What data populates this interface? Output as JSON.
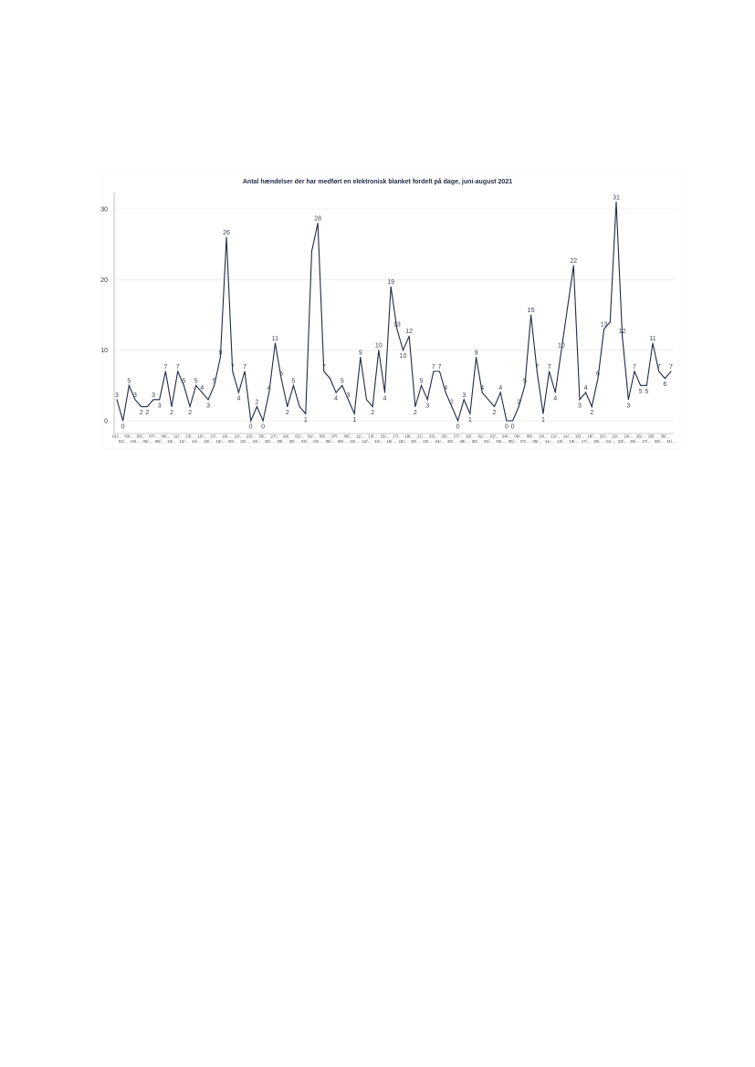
{
  "chart_data": {
    "type": "line",
    "title": "Antal hændelser der har medført en elektronisk blanket fordelt på dage, juni-august 2021",
    "xlabel": "",
    "ylabel": "",
    "ylim": [
      0,
      31
    ],
    "y_ticks": [
      0,
      10,
      20,
      30
    ],
    "grid": true,
    "series_color": "#1f2a44",
    "x": [
      "01/...",
      "02/...",
      "03/...",
      "04/...",
      "05/...",
      "06/...",
      "07/...",
      "08/...",
      "09/...",
      "10/...",
      "11/...",
      "12/...",
      "13/...",
      "14/...",
      "15/...",
      "16/...",
      "17/...",
      "18/...",
      "19/...",
      "20/...",
      "21/...",
      "22/...",
      "23/...",
      "24/...",
      "25/...",
      "26/...",
      "27/...",
      "28/...",
      "29/...",
      "30/...",
      "01/...",
      "02/...",
      "03/...",
      "04/...",
      "05/...",
      "06/...",
      "07/...",
      "08/...",
      "09/...",
      "10/...",
      "11/...",
      "12/...",
      "13/...",
      "14/...",
      "15/...",
      "16/...",
      "17/...",
      "18/...",
      "19/...",
      "20/...",
      "21/...",
      "22/...",
      "23/...",
      "24/...",
      "25/...",
      "26/...",
      "27/...",
      "28/...",
      "29/...",
      "30/...",
      "31/...",
      "01/...",
      "02/...",
      "03/...",
      "04/...",
      "05/...",
      "06/...",
      "07/...",
      "08/...",
      "09/...",
      "10/...",
      "11/...",
      "12/...",
      "13/...",
      "14/...",
      "15/...",
      "16/...",
      "17/...",
      "18/...",
      "19/...",
      "20/...",
      "21/...",
      "22/...",
      "23/...",
      "24/...",
      "25/...",
      "26/...",
      "27/...",
      "28/...",
      "29/...",
      "30/...",
      "31/..."
    ],
    "values": [
      3,
      0,
      5,
      3,
      2,
      2,
      3,
      3,
      7,
      2,
      7,
      5,
      2,
      5,
      4,
      3,
      5,
      9,
      26,
      7,
      4,
      7,
      0,
      2,
      0,
      4,
      11,
      6,
      2,
      5,
      2,
      1,
      24,
      28,
      7,
      6,
      4,
      5,
      3,
      1,
      9,
      3,
      2,
      10,
      4,
      19,
      13,
      10,
      12,
      2,
      5,
      3,
      7,
      7,
      4,
      2,
      0,
      3,
      1,
      9,
      4,
      3,
      2,
      4,
      0,
      0,
      2,
      5,
      15,
      7,
      1,
      7,
      4,
      10,
      16,
      22,
      3,
      4,
      2,
      6,
      13,
      14,
      31,
      12,
      3,
      7,
      5,
      5,
      11,
      7,
      6,
      7
    ],
    "data_labels": [
      "3",
      "0",
      "5",
      "3",
      "2",
      "2",
      "3",
      "3",
      "7",
      "2",
      "7",
      "5",
      "2",
      "5",
      "4",
      "3",
      "5",
      "9",
      "26",
      "7",
      "4",
      "7",
      "0",
      "2",
      "0",
      "4",
      "11",
      "6",
      "2",
      "5",
      "",
      "1",
      "",
      "28",
      "7",
      "",
      "4",
      "5",
      "3",
      "1",
      "9",
      "",
      "2",
      "10",
      "4",
      "19",
      "13",
      "10",
      "12",
      "2",
      "5",
      "3",
      "7",
      "7",
      "4",
      "2",
      "0",
      "3",
      "1",
      "9",
      "4",
      "",
      "2",
      "4",
      "0",
      "0",
      "2",
      "5",
      "15",
      "7",
      "1",
      "7",
      "4",
      "10",
      "",
      "22",
      "3",
      "4",
      "2",
      "6",
      "13",
      "",
      "31",
      "12",
      "3",
      "7",
      "5",
      "5",
      "11",
      "7",
      "6",
      "7"
    ]
  }
}
